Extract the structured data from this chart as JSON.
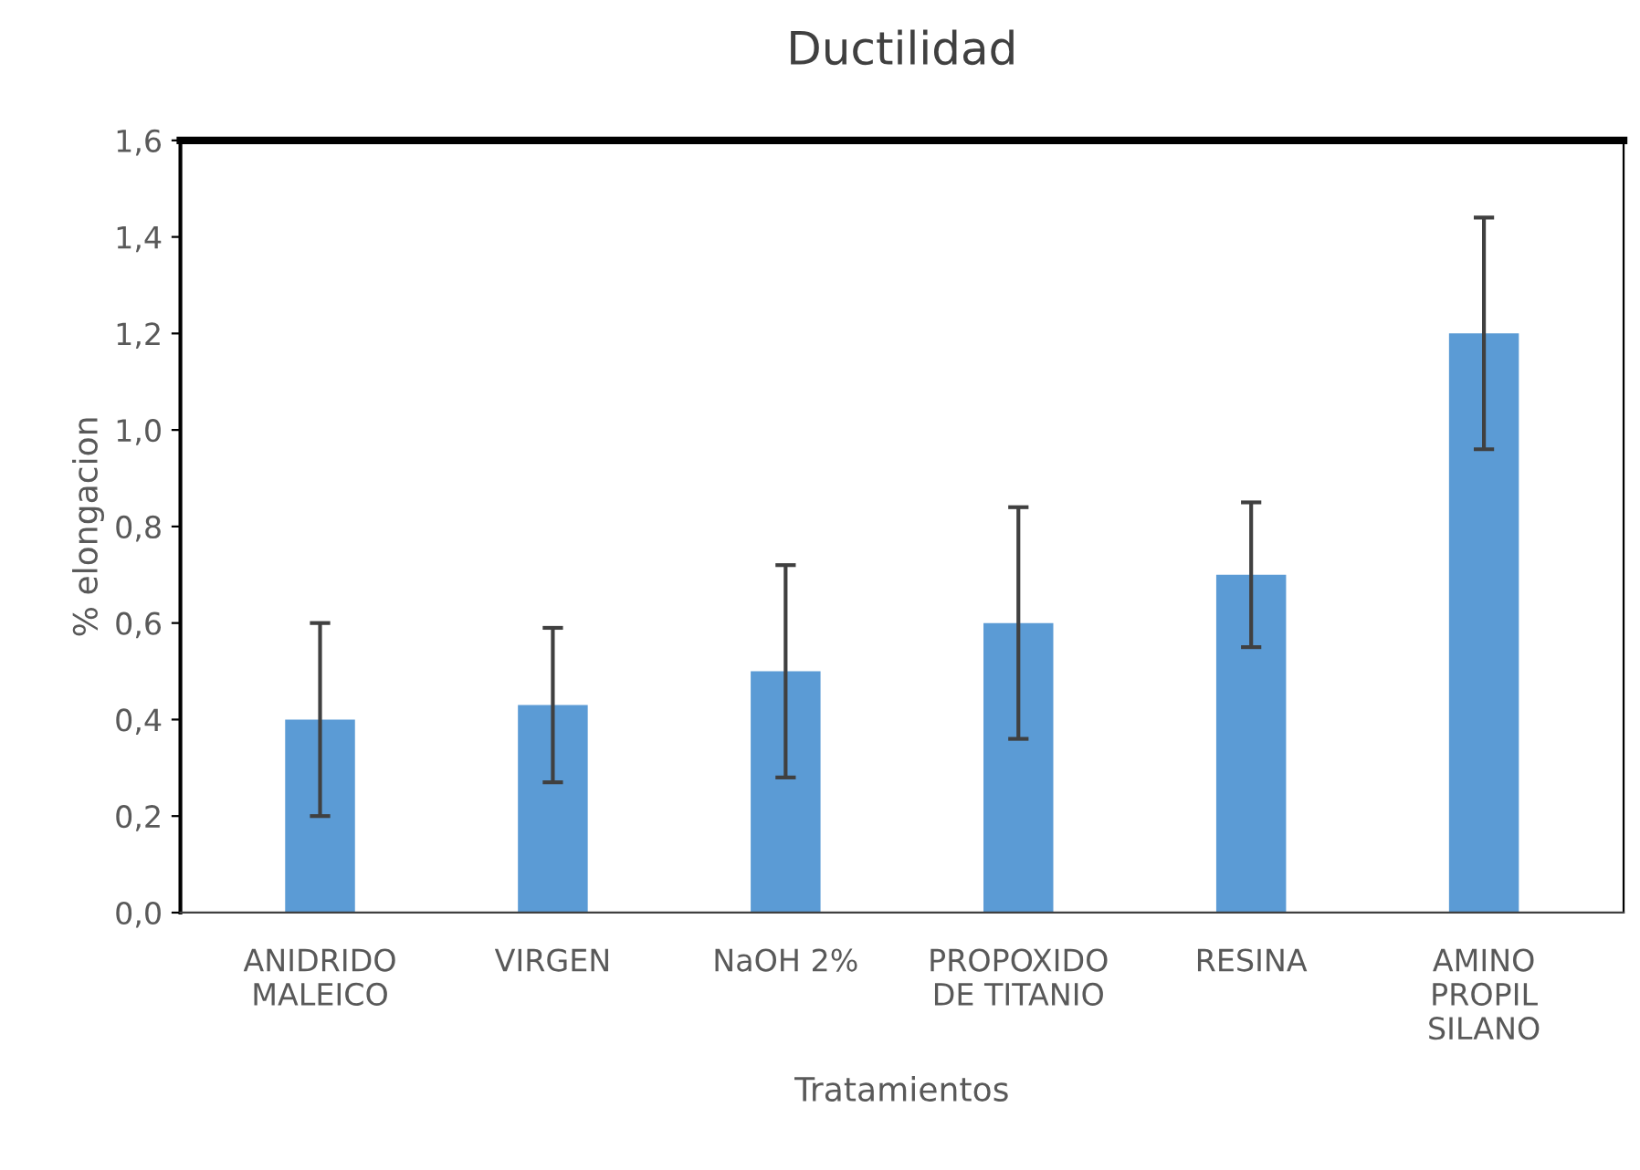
{
  "chart_data": {
    "type": "bar",
    "title": "Ductilidad",
    "xlabel": "Tratamientos",
    "ylabel": "% elongacion",
    "categories": [
      "ANIDRIDO\nMALEICO",
      "VIRGEN",
      "NaOH 2%",
      "PROPOXIDO\nDE TITANIO",
      "RESINA",
      "AMINO\nPROPIL\nSILANO"
    ],
    "values": [
      0.4,
      0.43,
      0.5,
      0.6,
      0.7,
      1.2
    ],
    "errors": [
      0.2,
      0.16,
      0.22,
      0.24,
      0.15,
      0.24
    ],
    "color": "#5b9bd5",
    "ylim": [
      0,
      1.6
    ],
    "yticks": [
      {
        "value": 0,
        "label": "0,0"
      },
      {
        "value": 0.2,
        "label": "0,2"
      },
      {
        "value": 0.4,
        "label": "0,4"
      },
      {
        "value": 0.6,
        "label": "0,6"
      },
      {
        "value": 0.8,
        "label": "0,8"
      },
      {
        "value": 1.0,
        "label": "1,0"
      },
      {
        "value": 1.2,
        "label": "1,2"
      },
      {
        "value": 1.4,
        "label": "1,4"
      },
      {
        "value": 1.6,
        "label": "1,6"
      }
    ],
    "grid": false,
    "legend": false
  }
}
